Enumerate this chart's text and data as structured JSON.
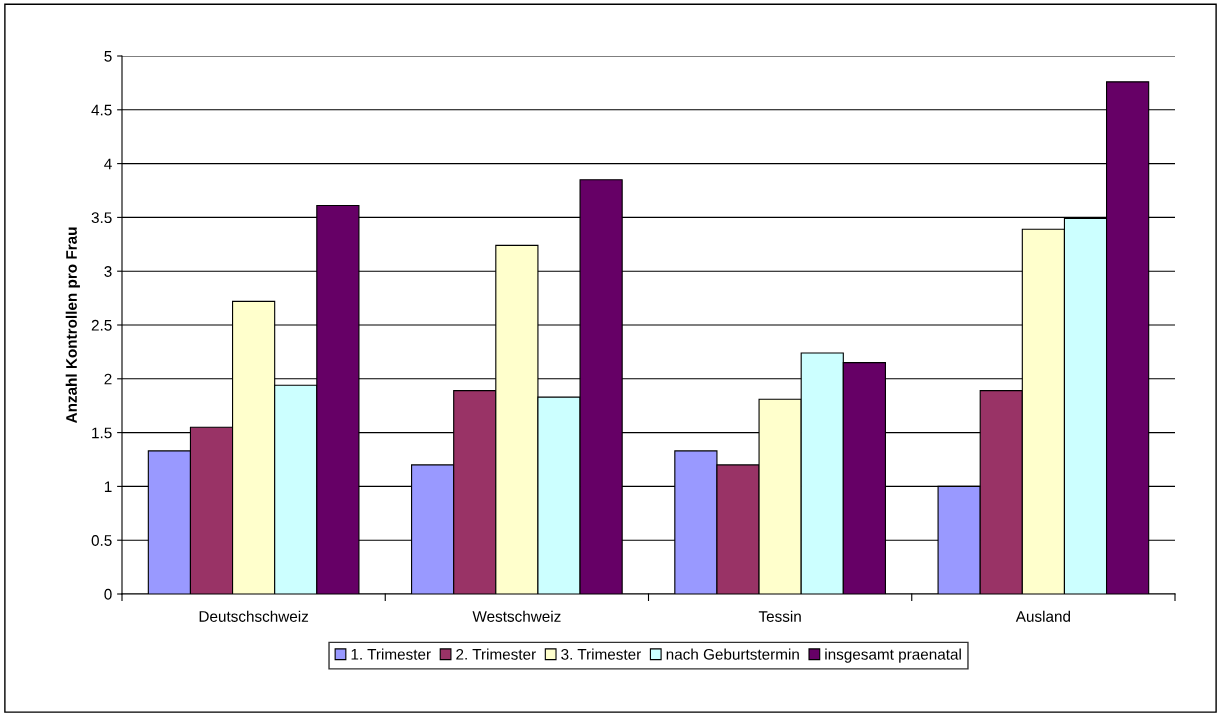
{
  "chart_data": {
    "type": "bar",
    "ylabel": "Anzahl Kontrollen pro Frau",
    "categories": [
      "Deutschschweiz",
      "Westschweiz",
      "Tessin",
      "Ausland"
    ],
    "series": [
      {
        "name": "1. Trimester",
        "color": "#9999ff",
        "values": [
          1.33,
          1.2,
          1.33,
          1.0
        ]
      },
      {
        "name": "2. Trimester",
        "color": "#993366",
        "values": [
          1.55,
          1.89,
          1.2,
          1.89
        ]
      },
      {
        "name": "3. Trimester",
        "color": "#ffffcc",
        "values": [
          2.72,
          3.24,
          1.81,
          3.39
        ]
      },
      {
        "name": "nach Geburtstermin",
        "color": "#ccffff",
        "values": [
          1.94,
          1.83,
          2.24,
          3.49
        ]
      },
      {
        "name": "insgesamt praenatal",
        "color": "#660066",
        "values": [
          3.61,
          3.85,
          2.15,
          4.76
        ]
      }
    ],
    "ylim": [
      0,
      5
    ],
    "yticks": [
      0,
      0.5,
      1,
      1.5,
      2,
      2.5,
      3,
      3.5,
      4,
      4.5,
      5
    ],
    "grid": "y",
    "legend": "bottom"
  }
}
